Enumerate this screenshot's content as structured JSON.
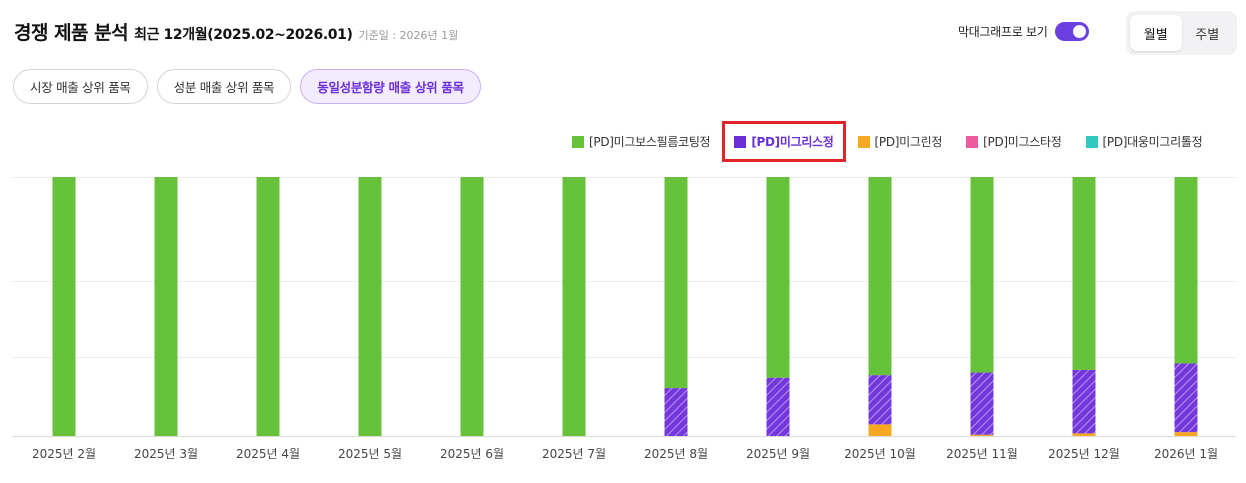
{
  "header": {
    "title": "경쟁 제품 분석",
    "period": "최근 12개월(2025.02~2026.01)",
    "base_date": "기준일 : 2026년 1월"
  },
  "controls": {
    "bar_toggle_label": "막대그래프로 보기",
    "bar_toggle_on": true,
    "segments": [
      "월별",
      "주별"
    ],
    "active_segment": "월별"
  },
  "filters": [
    {
      "label": "시장 매출 상위 품목",
      "active": false
    },
    {
      "label": "성분 매출 상위 품목",
      "active": false
    },
    {
      "label": "동일성분함량 매출 상위 품목",
      "active": true
    }
  ],
  "legend": [
    {
      "label": "[PD]미그보스필름코팅정",
      "color": "#65c23a",
      "highlighted": false
    },
    {
      "label": "[PD]미그리스정",
      "color": "#6b2fd8",
      "highlighted": true
    },
    {
      "label": "[PD]미그린정",
      "color": "#f7a823",
      "highlighted": false
    },
    {
      "label": "[PD]미그스타정",
      "color": "#ee5aa0",
      "highlighted": false
    },
    {
      "label": "[PD]대웅미그리톨정",
      "color": "#32c8c0",
      "highlighted": false
    }
  ],
  "chart_data": {
    "type": "bar",
    "stacked": true,
    "normalized_percent": true,
    "grid": true,
    "ylim": [
      0,
      100
    ],
    "categories": [
      "2025년 2월",
      "2025년 3월",
      "2025년 4월",
      "2025년 5월",
      "2025년 6월",
      "2025년 7월",
      "2025년 8월",
      "2025년 9월",
      "2025년 10월",
      "2025년 11월",
      "2025년 12월",
      "2026년 1월"
    ],
    "series": [
      {
        "name": "[PD]대웅미그리톨정",
        "color": "#32c8c0",
        "values": [
          0,
          0,
          0,
          0,
          0,
          0,
          0,
          0,
          0,
          0,
          0,
          0
        ]
      },
      {
        "name": "[PD]미그스타정",
        "color": "#ee5aa0",
        "values": [
          0,
          0,
          0,
          0,
          0,
          0,
          0,
          0,
          0,
          0,
          0,
          0
        ]
      },
      {
        "name": "[PD]미그린정",
        "color": "#f7a823",
        "values": [
          0,
          0,
          0,
          0,
          0,
          0,
          0,
          0,
          4.5,
          0.5,
          1,
          1.5
        ]
      },
      {
        "name": "[PD]미그리스정",
        "color": "#6b2fd8",
        "hatched": true,
        "values": [
          0,
          0,
          0,
          0,
          0,
          0,
          18.5,
          22.5,
          19,
          24,
          24.5,
          26.5
        ]
      },
      {
        "name": "[PD]미그보스필름코팅정",
        "color": "#65c23a",
        "values": [
          100,
          100,
          100,
          100,
          100,
          100,
          81.5,
          77.5,
          76.5,
          75.5,
          74.5,
          72
        ]
      }
    ]
  }
}
